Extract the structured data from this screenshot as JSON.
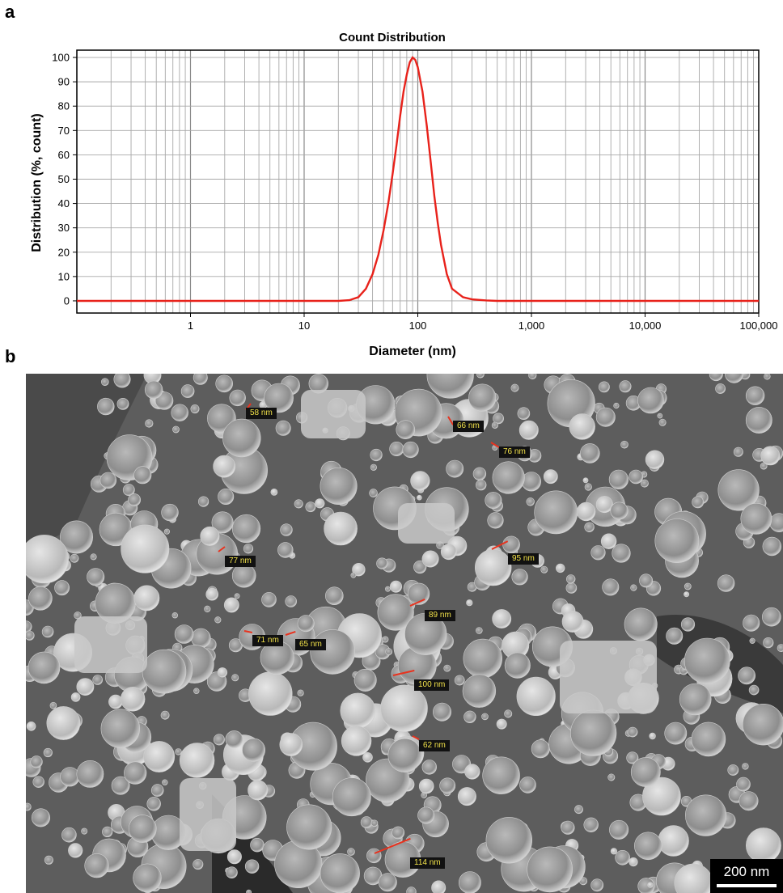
{
  "panels": {
    "a": "a",
    "b": "b"
  },
  "chart_data": {
    "type": "line",
    "title": "Count Distribution",
    "xlabel": "Diameter (nm)",
    "ylabel": "Distribution (%, count)",
    "xscale": "log",
    "xlim": [
      0.1,
      100000
    ],
    "ylim": [
      -5,
      103
    ],
    "x_ticks": [
      1,
      10,
      100,
      1000,
      10000,
      100000
    ],
    "x_tick_labels": [
      "1",
      "10",
      "100",
      "1,000",
      "10,000",
      "100,000"
    ],
    "y_ticks": [
      0,
      10,
      20,
      30,
      40,
      50,
      60,
      70,
      80,
      90,
      100
    ],
    "y_tick_labels": [
      "0",
      "10",
      "20",
      "30",
      "40",
      "50",
      "60",
      "70",
      "80",
      "90",
      "100"
    ],
    "grid": true,
    "line_color": "#e8221b",
    "series": [
      {
        "x": [
          0.1,
          10,
          20,
          25,
          30,
          35,
          40,
          45,
          50,
          55,
          60,
          65,
          70,
          75,
          80,
          85,
          90,
          95,
          100,
          110,
          120,
          130,
          140,
          150,
          160,
          180,
          200,
          250,
          300,
          400,
          500,
          1000,
          100000
        ],
        "values": [
          0,
          0,
          0,
          0.3,
          1.5,
          5,
          11,
          19,
          29,
          40,
          52,
          64,
          76,
          86,
          93,
          98,
          100,
          99,
          96,
          86,
          72,
          57,
          43,
          32,
          23,
          11,
          5,
          1.5,
          0.6,
          0.2,
          0,
          0,
          0
        ]
      }
    ]
  },
  "sem": {
    "measurements": [
      "58 nm",
      "66 nm",
      "76 nm",
      "77 nm",
      "95 nm",
      "89 nm",
      "71 nm",
      "65 nm",
      "100 nm",
      "62 nm",
      "114 nm"
    ],
    "scale_bar_label": "200 nm"
  }
}
